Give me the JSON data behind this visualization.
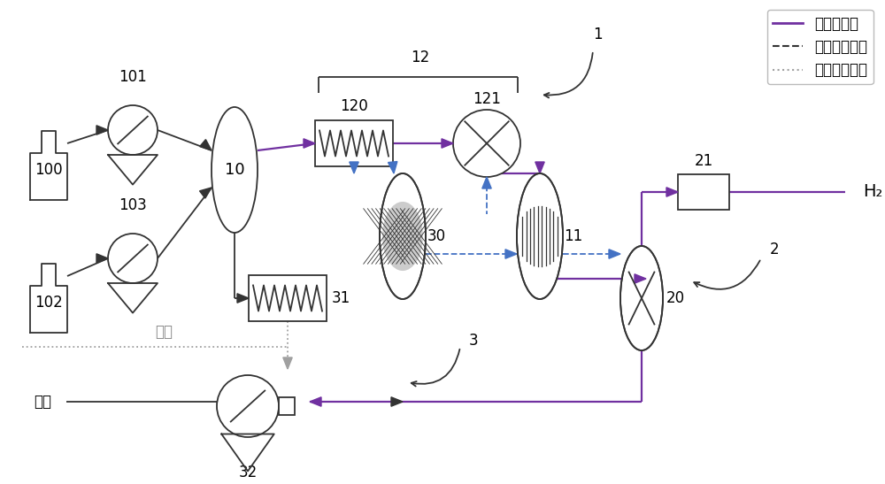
{
  "bg_color": "#ffffff",
  "line_color": "#333333",
  "main_flow_color": "#7030a0",
  "heat_fluid_color": "#4472c4",
  "exhaust_color": "#a0a0a0",
  "legend_items": [
    {
      "label": "主反应流程",
      "color": "#7030a0",
      "ls": "-"
    },
    {
      "label": "中间换热工质",
      "color": "#333333",
      "ls": "--"
    },
    {
      "label": "尾气排放流程",
      "color": "#a0a0a0",
      "ls": ":"
    }
  ],
  "figsize": [
    10.0,
    5.47
  ],
  "dpi": 100
}
